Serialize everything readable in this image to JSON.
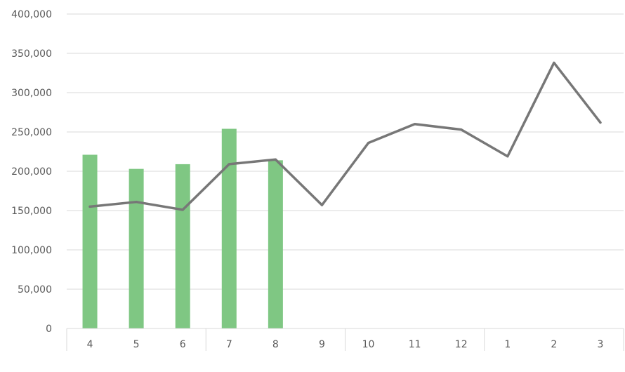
{
  "chart_data": {
    "type": "bar+line",
    "categories": [
      "4",
      "5",
      "6",
      "7",
      "8",
      "9",
      "10",
      "11",
      "12",
      "1",
      "2",
      "3"
    ],
    "y_ticks": [
      "0",
      "50,000",
      "100,000",
      "150,000",
      "200,000",
      "250,000",
      "300,000",
      "350,000",
      "400,000"
    ],
    "ylim": [
      0,
      400000
    ],
    "grid": true,
    "legend": "none",
    "series": [
      {
        "type": "bar",
        "color": "#7fc783",
        "values": [
          221000,
          203000,
          209000,
          254000,
          214000,
          null,
          null,
          null,
          null,
          null,
          null,
          null
        ]
      },
      {
        "type": "line",
        "color": "#777777",
        "values": [
          155000,
          161000,
          151000,
          209000,
          215000,
          157000,
          236000,
          260000,
          253000,
          219000,
          338000,
          262000
        ]
      }
    ]
  }
}
